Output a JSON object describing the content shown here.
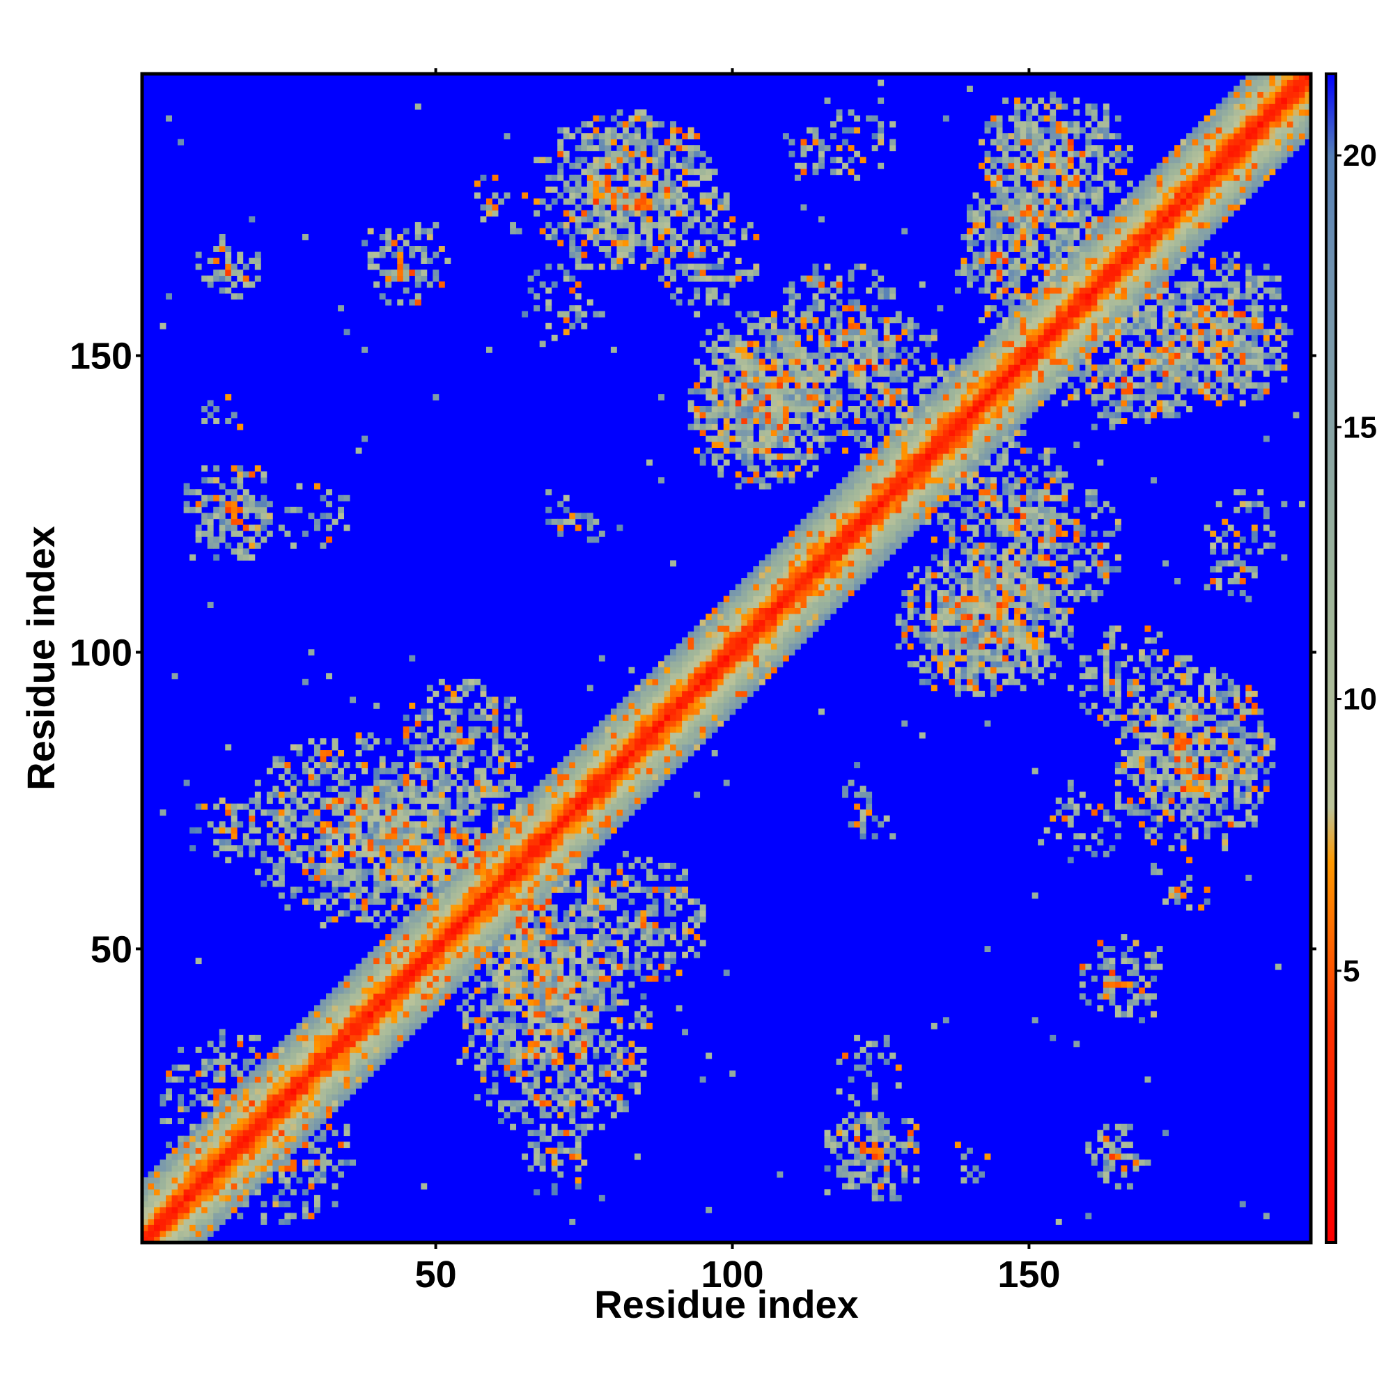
{
  "chart_data": {
    "type": "heatmap",
    "title": "",
    "xlabel": "Residue index",
    "ylabel": "Residue index",
    "n_residues": 197,
    "xlim": [
      1,
      197
    ],
    "ylim": [
      1,
      197
    ],
    "x_ticks": [
      50,
      100,
      150
    ],
    "y_ticks": [
      50,
      100,
      150
    ],
    "colorbar": {
      "ticks": [
        5,
        10,
        15,
        20
      ],
      "range": [
        0,
        21.5
      ],
      "stops": [
        {
          "value": 0,
          "color": "#ff0000"
        },
        {
          "value": 4,
          "color": "#ff3300"
        },
        {
          "value": 7,
          "color": "#ff9900"
        },
        {
          "value": 8,
          "color": "#bcc49a"
        },
        {
          "value": 12,
          "color": "#9fb59a"
        },
        {
          "value": 18,
          "color": "#6f91b0"
        },
        {
          "value": 20,
          "color": "#5580b8"
        },
        {
          "value": 21.5,
          "color": "#0000ff"
        }
      ]
    },
    "background_value": 21.5,
    "background_color": "#0000ff",
    "diagonal_band": {
      "core_value": 2,
      "width_residues": 10
    },
    "contact_domains": [
      {
        "x": 35,
        "y": 70,
        "r": 17,
        "density": 0.7
      },
      {
        "x": 55,
        "y": 85,
        "r": 11,
        "density": 0.6
      },
      {
        "x": 68,
        "y": 55,
        "r": 14,
        "density": 0.7
      },
      {
        "x": 66,
        "y": 42,
        "r": 12,
        "density": 0.6
      },
      {
        "x": 15,
        "y": 25,
        "r": 12,
        "density": 0.6
      },
      {
        "x": 15,
        "y": 12,
        "r": 8,
        "density": 0.5
      },
      {
        "x": 105,
        "y": 145,
        "r": 13,
        "density": 0.7
      },
      {
        "x": 125,
        "y": 145,
        "r": 13,
        "density": 0.6
      },
      {
        "x": 80,
        "y": 178,
        "r": 14,
        "density": 0.6
      },
      {
        "x": 95,
        "y": 168,
        "r": 10,
        "density": 0.5
      },
      {
        "x": 155,
        "y": 182,
        "r": 13,
        "density": 0.7
      },
      {
        "x": 148,
        "y": 165,
        "r": 12,
        "density": 0.6
      },
      {
        "x": 140,
        "y": 105,
        "r": 13,
        "density": 0.7
      },
      {
        "x": 155,
        "y": 118,
        "r": 11,
        "density": 0.6
      },
      {
        "x": 178,
        "y": 85,
        "r": 13,
        "density": 0.7
      },
      {
        "x": 172,
        "y": 150,
        "r": 11,
        "density": 0.6
      },
      {
        "x": 185,
        "y": 150,
        "r": 9,
        "density": 0.5
      },
      {
        "x": 125,
        "y": 15,
        "r": 8,
        "density": 0.6
      },
      {
        "x": 123,
        "y": 28,
        "r": 6,
        "density": 0.3
      },
      {
        "x": 70,
        "y": 14,
        "r": 6,
        "density": 0.4
      },
      {
        "x": 16,
        "y": 122,
        "r": 7,
        "density": 0.6
      },
      {
        "x": 16,
        "y": 70,
        "r": 5,
        "density": 0.4
      },
      {
        "x": 16,
        "y": 165,
        "r": 5,
        "density": 0.3
      },
      {
        "x": 33,
        "y": 122,
        "r": 5,
        "density": 0.3
      },
      {
        "x": 45,
        "y": 166,
        "r": 8,
        "density": 0.3
      },
      {
        "x": 70,
        "y": 122,
        "r": 4,
        "density": 0.3
      },
      {
        "x": 165,
        "y": 15,
        "r": 6,
        "density": 0.4
      },
      {
        "x": 165,
        "y": 45,
        "r": 7,
        "density": 0.3
      },
      {
        "x": 175,
        "y": 60,
        "r": 6,
        "density": 0.3
      },
      {
        "x": 185,
        "y": 115,
        "r": 7,
        "density": 0.3
      },
      {
        "x": 122,
        "y": 74,
        "r": 5,
        "density": 0.3
      },
      {
        "x": 140,
        "y": 14,
        "r": 4,
        "density": 0.3
      },
      {
        "x": 120,
        "y": 187,
        "r": 8,
        "density": 0.3
      },
      {
        "x": 160,
        "y": 72,
        "r": 8,
        "density": 0.3
      }
    ],
    "grid": false,
    "legend": "colorbar-right"
  }
}
